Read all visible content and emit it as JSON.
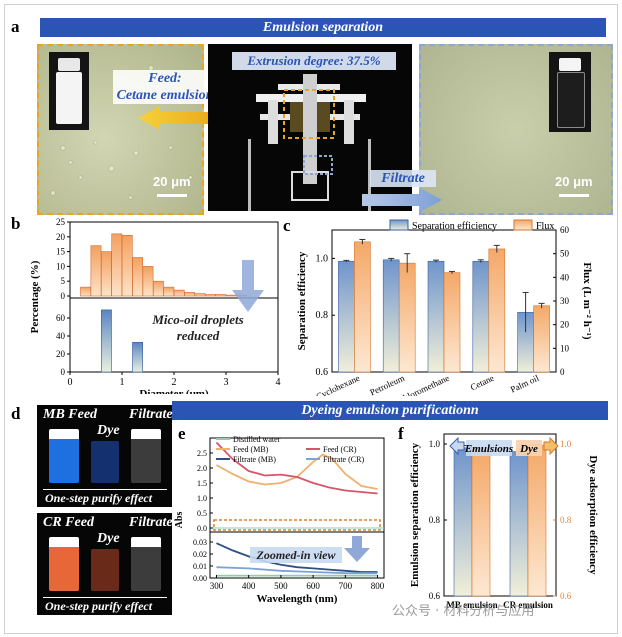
{
  "panel_letters": {
    "a": "a",
    "b": "b",
    "c": "c",
    "d": "d",
    "e": "e",
    "f": "f"
  },
  "banner_top": "Emulsion separation",
  "banner_mid": "Dyeing emulsion purificationn",
  "panel_a": {
    "feed_label": "Feed:",
    "feed_sub": "Cetane emulsion",
    "extrusion": "Extrusion degree: 37.5%",
    "filtrate": "Filtrate",
    "scale_left": "20 μm",
    "scale_right": "20 μm"
  },
  "panel_d": {
    "mb_feed": "MB Feed",
    "cr_feed": "CR Feed",
    "dye": "Dye",
    "filtrate": "Filtrate",
    "footer": "One-step purify effect"
  },
  "watermark": "公众号 · 材料分析与应用",
  "colors": {
    "banner": "#2a55b5",
    "orange": "#f39a4e",
    "blue": "#4e76b8",
    "dash_orange": "#e7a61c"
  },
  "chart_data": [
    {
      "id": "b",
      "type": "bar",
      "xlabel": "Diameter (μm)",
      "ylabel": "Percentage (%)",
      "xlim": [
        0,
        4
      ],
      "xticks": [
        "0",
        "1",
        "2",
        "3",
        "4"
      ],
      "top": {
        "ylim": [
          0,
          25
        ],
        "yticks": [
          "0",
          "5",
          "10",
          "15",
          "20",
          "25"
        ],
        "x": [
          0.3,
          0.5,
          0.7,
          0.9,
          1.1,
          1.3,
          1.5,
          1.7,
          1.9,
          2.1,
          2.3,
          2.5,
          2.7,
          2.9,
          3.1,
          3.3
        ],
        "values": [
          3,
          17,
          15,
          21,
          20.5,
          13,
          10,
          5,
          3,
          2,
          1.2,
          0.8,
          0.5,
          0.5,
          0.3,
          0.3
        ]
      },
      "bottom": {
        "ylim": [
          0,
          80
        ],
        "yticks": [
          "0",
          "20",
          "40",
          "60"
        ],
        "x": [
          0.7,
          1.3
        ],
        "values": [
          69,
          33
        ]
      },
      "annotation": "Mico-oil droplets reduced"
    },
    {
      "id": "c",
      "type": "bar",
      "categories": [
        "Cyclohexane",
        "Petroleum",
        "Dichloromethane",
        "Cetane",
        "Palm oil"
      ],
      "series": [
        {
          "name": "Separation efficiency",
          "values": [
            0.99,
            0.995,
            0.99,
            0.99,
            0.81
          ],
          "errors": [
            0.003,
            0.005,
            0.004,
            0.005,
            0.07
          ]
        },
        {
          "name": "Flux",
          "values": [
            55,
            46,
            42,
            52,
            28
          ],
          "errors": [
            1,
            4,
            0.5,
            1.5,
            1
          ]
        }
      ],
      "ylabel": "Separation efficiency",
      "ylim": [
        0.6,
        1.1
      ],
      "yticks": [
        "0.6",
        "0.8",
        "1.0"
      ],
      "y2label": "Flux (L m⁻² h⁻¹)",
      "y2lim": [
        0,
        60
      ],
      "y2ticks": [
        "0",
        "10",
        "20",
        "30",
        "40",
        "50",
        "60"
      ]
    },
    {
      "id": "e",
      "type": "line",
      "xlabel": "Wavelength (nm)",
      "ylabel": "Abs",
      "xlim": [
        280,
        820
      ],
      "xticks": [
        "300",
        "400",
        "500",
        "600",
        "700",
        "800"
      ],
      "top": {
        "yticks": [
          "0.0",
          "0.5",
          "1.0",
          "1.5",
          "2.0",
          "2.5"
        ],
        "ylim": [
          0,
          3
        ]
      },
      "bottom": {
        "yticks": [
          "0.00",
          "0.01",
          "0.02",
          "0.03"
        ],
        "ylim": [
          0,
          0.035
        ]
      },
      "legend": [
        "Distilled water",
        "Feed (MB)",
        "Feed (CR)",
        "Filtrate (MB)",
        "Filtrate (CR)"
      ],
      "annotation": "Zoomed-in view",
      "series": [
        {
          "name": "Feed (MB)",
          "x": [
            300,
            350,
            400,
            450,
            500,
            550,
            600,
            630,
            660,
            700,
            750,
            800
          ],
          "y": [
            2.1,
            1.8,
            1.55,
            1.45,
            1.5,
            1.7,
            2.2,
            2.45,
            2.3,
            1.8,
            1.4,
            1.3
          ]
        },
        {
          "name": "Feed (CR)",
          "x": [
            300,
            350,
            400,
            450,
            500,
            550,
            600,
            650,
            700,
            750,
            800
          ],
          "y": [
            2.85,
            2.3,
            1.9,
            1.75,
            1.78,
            1.7,
            1.5,
            1.35,
            1.25,
            1.2,
            1.15
          ]
        },
        {
          "name": "Filtrate (MB)",
          "x": [
            300,
            350,
            400,
            450,
            500,
            550,
            600,
            650,
            700,
            750,
            800
          ],
          "y": [
            0.029,
            0.023,
            0.018,
            0.014,
            0.011,
            0.009,
            0.008,
            0.007,
            0.006,
            0.005,
            0.005
          ]
        },
        {
          "name": "Filtrate (CR)",
          "x": [
            300,
            400,
            500,
            600,
            700,
            800
          ],
          "y": [
            0.009,
            0.008,
            0.006,
            0.005,
            0.004,
            0.004
          ]
        },
        {
          "name": "Distilled water",
          "x": [
            300,
            800
          ],
          "y": [
            0.002,
            0.002
          ]
        }
      ]
    },
    {
      "id": "f",
      "type": "bar",
      "categories": [
        "MB emulsion",
        "CR emulsion"
      ],
      "series": [
        {
          "name": "Emulsions",
          "values": [
            0.99,
            0.98
          ],
          "errors": [
            0.006,
            0.007
          ]
        },
        {
          "name": "Dye",
          "values": [
            0.985,
            0.997
          ],
          "errors": [
            0.004,
            0.002
          ]
        }
      ],
      "ylabel": "Emulsion separation efficiency",
      "ylim": [
        0.6,
        1.0
      ],
      "yticks": [
        "0.6",
        "0.8",
        "1.0"
      ],
      "y2label": "Dye adsorption efficiency",
      "y2ticks": [
        "0.6",
        "0.8",
        "1.0"
      ]
    }
  ]
}
